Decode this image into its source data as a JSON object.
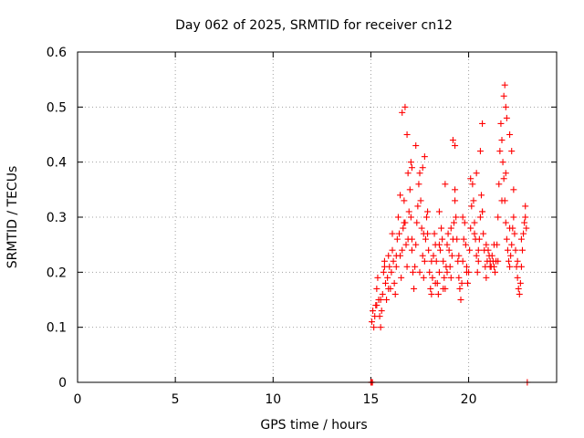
{
  "chart_data": {
    "type": "scatter",
    "title": "Day 062 of 2025, SRMTID for receiver cn12",
    "xlabel": "GPS time / hours",
    "ylabel": "SRMTID / TECUs",
    "xlim": [
      0,
      24.5
    ],
    "ylim": [
      0,
      0.6
    ],
    "x_ticks": [
      0,
      5,
      10,
      15,
      20
    ],
    "y_ticks": [
      0,
      0.1,
      0.2,
      0.3,
      0.4,
      0.5,
      0.6
    ],
    "x_tick_labels": [
      "0",
      "5",
      "10",
      "15",
      "20"
    ],
    "y_tick_labels": [
      "0",
      "0.1",
      "0.2",
      "0.3",
      "0.4",
      "0.5",
      "0.6"
    ],
    "grid": true,
    "marker": "+",
    "color": "#ff0000",
    "series": [
      {
        "name": "SRMTID",
        "x": [
          15.0,
          15.02,
          15.05,
          15.08,
          23.0,
          15.05,
          15.1,
          15.15,
          15.2,
          15.25,
          15.3,
          15.35,
          15.4,
          15.45,
          15.5,
          15.55,
          15.6,
          15.65,
          15.7,
          15.75,
          15.8,
          15.85,
          15.9,
          15.95,
          16.0,
          16.05,
          16.1,
          16.15,
          16.2,
          16.25,
          16.3,
          16.35,
          16.4,
          16.45,
          16.5,
          16.55,
          16.6,
          16.65,
          16.7,
          16.75,
          16.8,
          16.85,
          16.9,
          16.95,
          17.0,
          17.05,
          17.1,
          17.15,
          17.2,
          17.25,
          17.3,
          17.35,
          17.4,
          17.45,
          17.5,
          17.55,
          17.6,
          17.65,
          17.7,
          17.75,
          17.8,
          17.85,
          17.9,
          17.95,
          18.0,
          18.05,
          18.1,
          18.15,
          18.2,
          18.25,
          18.3,
          18.35,
          18.4,
          18.45,
          18.5,
          18.55,
          18.6,
          18.65,
          18.7,
          18.75,
          18.8,
          18.85,
          18.9,
          18.95,
          19.0,
          19.05,
          19.1,
          19.15,
          19.2,
          19.25,
          19.3,
          19.35,
          19.4,
          19.45,
          19.5,
          19.55,
          19.6,
          19.65,
          19.7,
          19.75,
          19.8,
          19.85,
          19.9,
          19.95,
          20.0,
          20.05,
          20.1,
          20.15,
          20.2,
          20.25,
          20.3,
          20.35,
          20.4,
          20.45,
          20.5,
          20.55,
          20.6,
          20.65,
          20.7,
          20.75,
          20.8,
          20.85,
          20.9,
          20.95,
          21.0,
          21.05,
          21.1,
          21.15,
          21.2,
          21.25,
          21.3,
          21.35,
          21.4,
          21.45,
          21.5,
          21.55,
          21.6,
          21.65,
          21.7,
          21.75,
          21.8,
          21.85,
          21.9,
          21.95,
          22.0,
          22.05,
          22.1,
          22.15,
          22.2,
          22.25,
          22.3,
          22.35,
          22.4,
          22.45,
          22.5,
          22.55,
          22.6,
          22.65,
          22.7,
          22.75,
          22.8,
          22.85,
          22.9,
          22.95,
          15.3,
          15.5,
          15.7,
          15.9,
          16.1,
          16.3,
          16.5,
          16.7,
          16.9,
          17.1,
          17.3,
          17.5,
          17.7,
          17.9,
          18.1,
          18.3,
          18.5,
          18.7,
          18.9,
          19.1,
          19.3,
          19.5,
          19.7,
          19.9,
          20.1,
          20.3,
          20.5,
          20.7,
          20.9,
          21.1,
          21.3,
          21.5,
          21.7,
          21.9,
          22.1,
          22.3,
          22.5,
          22.7,
          22.9,
          16.6,
          16.75,
          16.85,
          17.05,
          17.1,
          17.65,
          17.75,
          19.2,
          19.3,
          20.6,
          20.7,
          21.8,
          21.85,
          21.9,
          21.95,
          22.1,
          22.2,
          20.4,
          18.8,
          18.5
        ],
        "y": [
          0.0,
          0.0,
          0.0,
          0.0,
          0.0,
          0.11,
          0.13,
          0.1,
          0.12,
          0.14,
          0.17,
          0.19,
          0.15,
          0.12,
          0.1,
          0.13,
          0.16,
          0.2,
          0.22,
          0.18,
          0.15,
          0.19,
          0.23,
          0.21,
          0.17,
          0.2,
          0.24,
          0.22,
          0.18,
          0.16,
          0.21,
          0.26,
          0.3,
          0.27,
          0.23,
          0.19,
          0.24,
          0.28,
          0.33,
          0.29,
          0.25,
          0.21,
          0.26,
          0.31,
          0.35,
          0.3,
          0.24,
          0.2,
          0.17,
          0.21,
          0.25,
          0.29,
          0.32,
          0.36,
          0.38,
          0.33,
          0.28,
          0.23,
          0.19,
          0.22,
          0.26,
          0.3,
          0.27,
          0.24,
          0.2,
          0.17,
          0.16,
          0.19,
          0.23,
          0.27,
          0.25,
          0.22,
          0.18,
          0.16,
          0.2,
          0.24,
          0.28,
          0.26,
          0.22,
          0.19,
          0.17,
          0.21,
          0.25,
          0.27,
          0.24,
          0.21,
          0.19,
          0.23,
          0.26,
          0.29,
          0.33,
          0.3,
          0.26,
          0.22,
          0.19,
          0.17,
          0.15,
          0.18,
          0.22,
          0.26,
          0.29,
          0.25,
          0.21,
          0.18,
          0.2,
          0.24,
          0.28,
          0.32,
          0.36,
          0.33,
          0.29,
          0.26,
          0.23,
          0.2,
          0.22,
          0.26,
          0.3,
          0.34,
          0.31,
          0.27,
          0.24,
          0.21,
          0.19,
          0.22,
          0.24,
          0.23,
          0.22,
          0.21,
          0.23,
          0.22,
          0.21,
          0.2,
          0.22,
          0.25,
          0.3,
          0.36,
          0.42,
          0.47,
          0.44,
          0.4,
          0.37,
          0.33,
          0.29,
          0.26,
          0.24,
          0.22,
          0.21,
          0.23,
          0.25,
          0.28,
          0.3,
          0.27,
          0.24,
          0.21,
          0.19,
          0.17,
          0.16,
          0.18,
          0.21,
          0.24,
          0.27,
          0.29,
          0.3,
          0.28,
          0.14,
          0.15,
          0.21,
          0.17,
          0.27,
          0.23,
          0.34,
          0.29,
          0.38,
          0.26,
          0.43,
          0.2,
          0.27,
          0.31,
          0.22,
          0.18,
          0.25,
          0.17,
          0.2,
          0.28,
          0.35,
          0.23,
          0.3,
          0.2,
          0.37,
          0.27,
          0.24,
          0.31,
          0.25,
          0.21,
          0.25,
          0.22,
          0.33,
          0.38,
          0.28,
          0.35,
          0.22,
          0.26,
          0.32,
          0.49,
          0.5,
          0.45,
          0.4,
          0.39,
          0.39,
          0.41,
          0.44,
          0.43,
          0.42,
          0.47,
          0.52,
          0.54,
          0.5,
          0.48,
          0.45,
          0.42,
          0.38,
          0.36,
          0.31
        ]
      }
    ]
  }
}
